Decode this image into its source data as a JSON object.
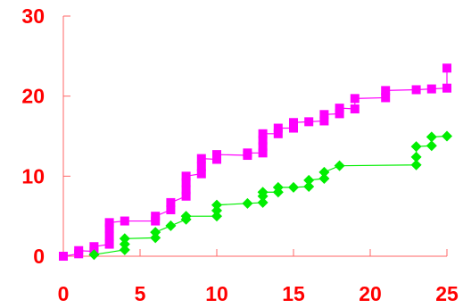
{
  "chart_data": {
    "type": "scatter",
    "title": "",
    "xlabel": "",
    "ylabel": "",
    "xlim": [
      0,
      25
    ],
    "ylim": [
      0,
      30
    ],
    "grid": false,
    "x_ticks": [
      "0",
      "5",
      "10",
      "15",
      "20",
      "25"
    ],
    "y_ticks": [
      "0",
      "10",
      "20",
      "30"
    ],
    "colors": {
      "axis": "#ff6666",
      "tick_label": "#ff0000",
      "series_magenta": "#ff00ff",
      "series_green": "#00ee00"
    },
    "series": [
      {
        "marker": "square",
        "color": "#ff00ff",
        "points": [
          [
            0,
            0
          ],
          [
            1,
            0.3
          ],
          [
            1,
            0.7
          ],
          [
            2,
            0.6
          ],
          [
            2,
            1.2
          ],
          [
            3,
            1.5
          ],
          [
            3,
            2.5
          ],
          [
            3,
            3.5
          ],
          [
            3,
            4.2
          ],
          [
            4,
            4.4
          ],
          [
            6,
            4.4
          ],
          [
            6,
            5.0
          ],
          [
            7,
            5.8
          ],
          [
            7,
            6.7
          ],
          [
            8,
            7.5
          ],
          [
            8,
            8.3
          ],
          [
            8,
            9.2
          ],
          [
            8,
            10.0
          ],
          [
            9,
            10.3
          ],
          [
            9,
            11.2
          ],
          [
            9,
            12.2
          ],
          [
            10,
            12.1
          ],
          [
            10,
            12.7
          ],
          [
            12,
            12.6
          ],
          [
            12,
            12.9
          ],
          [
            13,
            12.9
          ],
          [
            13,
            13.7
          ],
          [
            13,
            14.5
          ],
          [
            13,
            15.3
          ],
          [
            14,
            15.3
          ],
          [
            14,
            16.0
          ],
          [
            15,
            16.0
          ],
          [
            15,
            16.7
          ],
          [
            16,
            16.8
          ],
          [
            17,
            16.9
          ],
          [
            17,
            17.7
          ],
          [
            18,
            17.8
          ],
          [
            18,
            18.5
          ],
          [
            19,
            18.4
          ],
          [
            19,
            19.7
          ],
          [
            21,
            19.8
          ],
          [
            21,
            20.7
          ],
          [
            23,
            20.8
          ],
          [
            24,
            20.9
          ],
          [
            25,
            21.0
          ],
          [
            25,
            23.5
          ]
        ]
      },
      {
        "marker": "diamond",
        "color": "#00ee00",
        "points": [
          [
            2,
            0.2
          ],
          [
            4,
            0.8
          ],
          [
            4,
            1.5
          ],
          [
            4,
            2.2
          ],
          [
            6,
            2.3
          ],
          [
            6,
            3.0
          ],
          [
            7,
            3.8
          ],
          [
            8,
            4.6
          ],
          [
            8,
            5.0
          ],
          [
            10,
            5.0
          ],
          [
            10,
            5.7
          ],
          [
            10,
            6.4
          ],
          [
            12,
            6.6
          ],
          [
            13,
            6.7
          ],
          [
            13,
            7.5
          ],
          [
            13,
            8.0
          ],
          [
            14,
            8.0
          ],
          [
            14,
            8.6
          ],
          [
            15,
            8.6
          ],
          [
            16,
            8.7
          ],
          [
            16,
            9.5
          ],
          [
            17,
            9.7
          ],
          [
            17,
            10.5
          ],
          [
            18,
            11.3
          ],
          [
            23,
            11.4
          ],
          [
            23,
            12.4
          ],
          [
            23,
            13.7
          ],
          [
            24,
            13.8
          ],
          [
            24,
            14.9
          ],
          [
            25,
            15.0
          ]
        ]
      }
    ]
  }
}
